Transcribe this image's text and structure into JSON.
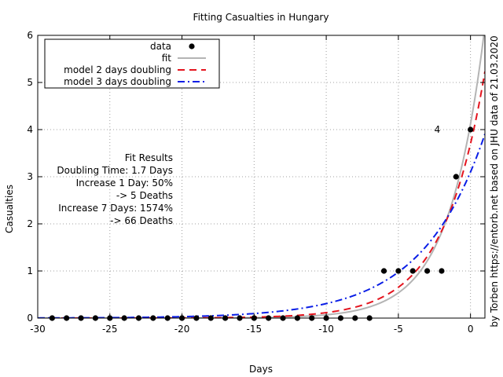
{
  "chart_data": {
    "type": "scatter",
    "title": "Fitting Casualties in Hungary",
    "xlabel": "Days",
    "ylabel": "Casualties",
    "right_label": "by Torben https://entorb.net based on JHU data of 21.03.2020",
    "xlim": [
      -30,
      1
    ],
    "ylim": [
      0,
      6
    ],
    "x_ticks": [
      "-30",
      "-25",
      "-20",
      "-15",
      "-10",
      "-5",
      "0"
    ],
    "x_tick_values": [
      -30,
      -25,
      -20,
      -15,
      -10,
      -5,
      0
    ],
    "y_ticks": [
      "0",
      "1",
      "2",
      "3",
      "4",
      "5",
      "6"
    ],
    "y_tick_values": [
      0,
      1,
      2,
      3,
      4,
      5,
      6
    ],
    "grid": true,
    "legend_position": "top-left",
    "series": [
      {
        "name": "data",
        "kind": "points",
        "color": "#000000",
        "x": [
          -29,
          -28,
          -27,
          -26,
          -25,
          -24,
          -23,
          -22,
          -21,
          -20,
          -19,
          -18,
          -17,
          -16,
          -15,
          -14,
          -13,
          -12,
          -11,
          -10,
          -9,
          -8,
          -7,
          -6,
          -5,
          -4,
          -3,
          -2,
          -1,
          0
        ],
        "y": [
          0,
          0,
          0,
          0,
          0,
          0,
          0,
          0,
          0,
          0,
          0,
          0,
          0,
          0,
          0,
          0,
          0,
          0,
          0,
          0,
          0,
          0,
          0,
          1,
          1,
          1,
          1,
          1,
          3,
          4
        ]
      },
      {
        "name": "fit",
        "kind": "curve",
        "color": "#b4b4b4",
        "dash": "solid",
        "a": 4.12,
        "doubling_days": 1.7
      },
      {
        "name": "model 2 days doubling",
        "kind": "curve",
        "color": "#e4141e",
        "dash": "dash",
        "a": 3.7,
        "doubling_days": 2
      },
      {
        "name": "model 3 days doubling",
        "kind": "curve",
        "color": "#0a1ee6",
        "dash": "dashdot",
        "a": 3.1,
        "doubling_days": 3
      }
    ],
    "annotations": {
      "point_label": {
        "text": "4",
        "x": -2.3,
        "y": 4
      },
      "fit_results": [
        "Fit Results",
        "Doubling Time: 1.7 Days",
        "Increase 1 Day: 50%",
        "-> 5 Deaths",
        "Increase 7 Days: 1574%",
        "-> 66 Deaths"
      ]
    }
  }
}
